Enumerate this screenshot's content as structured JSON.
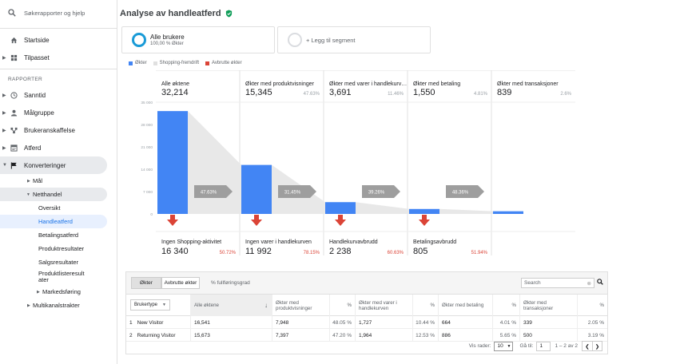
{
  "sidebar": {
    "search_label": "Søkerapporter og hjelp",
    "top_items": [
      {
        "label": "Startside",
        "icon": "home-icon"
      },
      {
        "label": "Tilpasset",
        "icon": "grid-icon"
      }
    ],
    "section_label": "RAPPORTER",
    "report_items": [
      {
        "label": "Sanntid",
        "icon": "clock-icon"
      },
      {
        "label": "Målgruppe",
        "icon": "person-icon"
      },
      {
        "label": "Brukeranskaffelse",
        "icon": "acquisition-icon"
      },
      {
        "label": "Atferd",
        "icon": "behavior-icon"
      },
      {
        "label": "Konverteringer",
        "icon": "flag-icon"
      }
    ],
    "conv_sub": {
      "maal": "Mål",
      "netthandel": "Netthandel",
      "leaves": [
        "Oversikt",
        "Handleatferd",
        "Betalingsatferd",
        "Produktresultater",
        "Salgsresultater",
        "Produktlisteresult ater"
      ],
      "markedsforing": "Markedsføring",
      "multikanal": "Multikanalstrakter"
    }
  },
  "header": {
    "title": "Analyse av handleatferd"
  },
  "segments": {
    "primary_name": "Alle brukere",
    "primary_sub": "100,00 % Økter",
    "add_label": "+ Legg til segment"
  },
  "legend": {
    "items": [
      "Økter",
      "Shopping-fremdrift",
      "Avbrutte økter"
    ]
  },
  "colors": {
    "bar": "#4285f4",
    "progress": "#e8e8e8",
    "abandon": "#db4437",
    "arrow": "#9e9e9e",
    "segment_ring": "#1a9bd7"
  },
  "chart_data": {
    "type": "bar",
    "ylim": [
      0,
      35000
    ],
    "y_ticks": [
      0,
      7000,
      14000,
      21000,
      28000,
      35000
    ],
    "y_tick_labels": [
      "0",
      "7 000",
      "14 000",
      "21 000",
      "28 000",
      "35 000"
    ],
    "stages": [
      {
        "label": "Alle øktene",
        "value": 32214,
        "value_label": "32,214",
        "pct": "",
        "progress": "47.63%",
        "abandon_label": "Ingen Shopping-aktivitet",
        "abandon_value": "16 340",
        "abandon_pct": "50.72%"
      },
      {
        "label": "Økter med produktvisninger",
        "value": 15345,
        "value_label": "15,345",
        "pct": "47.63%",
        "progress": "31.45%",
        "abandon_label": "Ingen varer i handlekurven",
        "abandon_value": "11 992",
        "abandon_pct": "78.15%"
      },
      {
        "label": "Økter med varer i handlekurv…",
        "value": 3691,
        "value_label": "3,691",
        "pct": "11.46%",
        "progress": "39.26%",
        "abandon_label": "Handlekurvavbrudd",
        "abandon_value": "2 238",
        "abandon_pct": "60.63%"
      },
      {
        "label": "Økter med betaling",
        "value": 1550,
        "value_label": "1,550",
        "pct": "4.81%",
        "progress": "48.36%",
        "abandon_label": "Betalingsavbrudd",
        "abandon_value": "805",
        "abandon_pct": "51.94%"
      },
      {
        "label": "Økter med transaksjoner",
        "value": 839,
        "value_label": "839",
        "pct": "2.6%",
        "progress": "",
        "abandon_label": "",
        "abandon_value": "",
        "abandon_pct": ""
      }
    ]
  },
  "table": {
    "toggle_sessions": "Økter",
    "toggle_abandoned": "Avbrutte økter",
    "pct_label": "% fullføringsgrad",
    "search_placeholder": "Search",
    "dimension": "Brukertype",
    "headers": [
      "Alle øktene",
      "Økter med produktvisninger",
      "%",
      "Økter med varer i handlekurven",
      "%",
      "Økter med betaling",
      "%",
      "Økter med transaksjoner",
      "%"
    ],
    "rows": [
      {
        "idx": "1",
        "name": "New Visitor",
        "cells": [
          "16,541",
          "7,948",
          "48.05 %",
          "1,727",
          "10.44 %",
          "664",
          "4.01 %",
          "339",
          "2.05 %"
        ]
      },
      {
        "idx": "2",
        "name": "Returning Visitor",
        "cells": [
          "15,673",
          "7,397",
          "47.20 %",
          "1,964",
          "12.53 %",
          "886",
          "5.65 %",
          "500",
          "3.19 %"
        ]
      }
    ],
    "pager": {
      "rows_label": "Vis rader:",
      "rows_value": "10",
      "goto_label": "Gå til:",
      "goto_value": "1",
      "range": "1 – 2 av 2"
    }
  }
}
